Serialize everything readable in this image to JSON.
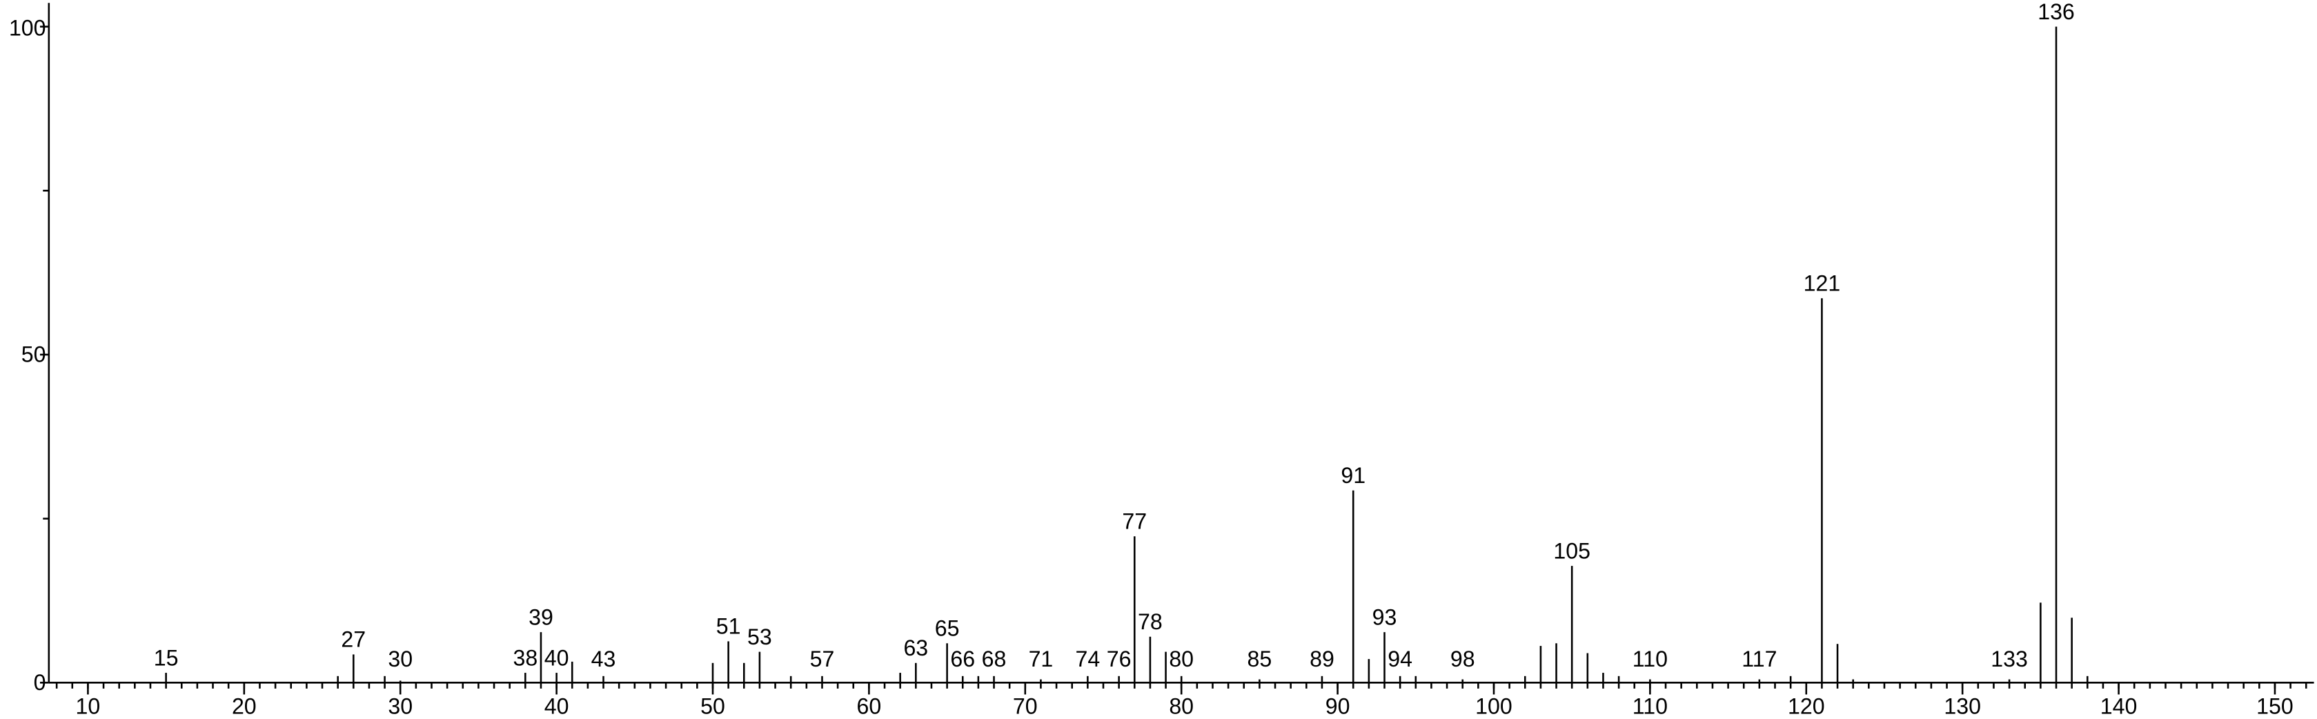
{
  "chart_data": {
    "type": "stick",
    "x": [
      15,
      26,
      27,
      29,
      30,
      38,
      39,
      40,
      41,
      43,
      50,
      51,
      52,
      53,
      55,
      57,
      62,
      63,
      65,
      66,
      67,
      68,
      71,
      74,
      76,
      77,
      78,
      79,
      80,
      85,
      89,
      91,
      92,
      93,
      94,
      95,
      98,
      102,
      103,
      104,
      105,
      106,
      107,
      108,
      110,
      117,
      119,
      121,
      122,
      123,
      133,
      135,
      136,
      137,
      138
    ],
    "values": [
      1.5,
      1,
      4.3,
      1,
      0.3,
      1.5,
      7.7,
      1.5,
      3.2,
      1,
      3,
      6.3,
      3,
      4.7,
      1,
      1,
      1.5,
      3,
      6,
      1,
      1,
      1,
      0.5,
      1,
      1,
      22.3,
      7,
      4.7,
      1,
      0.5,
      1,
      29.3,
      3.6,
      7.7,
      1,
      1,
      0.5,
      1,
      5.6,
      6,
      17.8,
      4.5,
      1.5,
      1,
      0.5,
      0.5,
      1,
      58.6,
      5.9,
      0.5,
      0.5,
      12.2,
      100,
      9.9,
      1
    ],
    "peak_labels": [
      "15",
      null,
      "27",
      null,
      "30",
      "38",
      "39",
      "40",
      null,
      "43",
      null,
      "51",
      null,
      "53",
      null,
      "57",
      null,
      "63",
      "65",
      "66",
      null,
      "68",
      "71",
      "74",
      "76",
      "77",
      "78",
      null,
      "80",
      "85",
      "89",
      "91",
      null,
      "93",
      "94",
      null,
      "98",
      null,
      null,
      null,
      "105",
      null,
      null,
      null,
      "110",
      "117",
      null,
      "121",
      null,
      null,
      "133",
      null,
      "136",
      null,
      null
    ],
    "color": "#000000",
    "xlim": [
      7.5,
      152.5
    ],
    "ylim": [
      0,
      103
    ],
    "xticks": [
      10,
      20,
      30,
      40,
      50,
      60,
      70,
      80,
      90,
      100,
      110,
      120,
      130,
      140,
      150
    ],
    "xminor_step": 1,
    "yticks": [
      0,
      50,
      100
    ],
    "yminor_ticks": [
      25,
      75
    ]
  }
}
